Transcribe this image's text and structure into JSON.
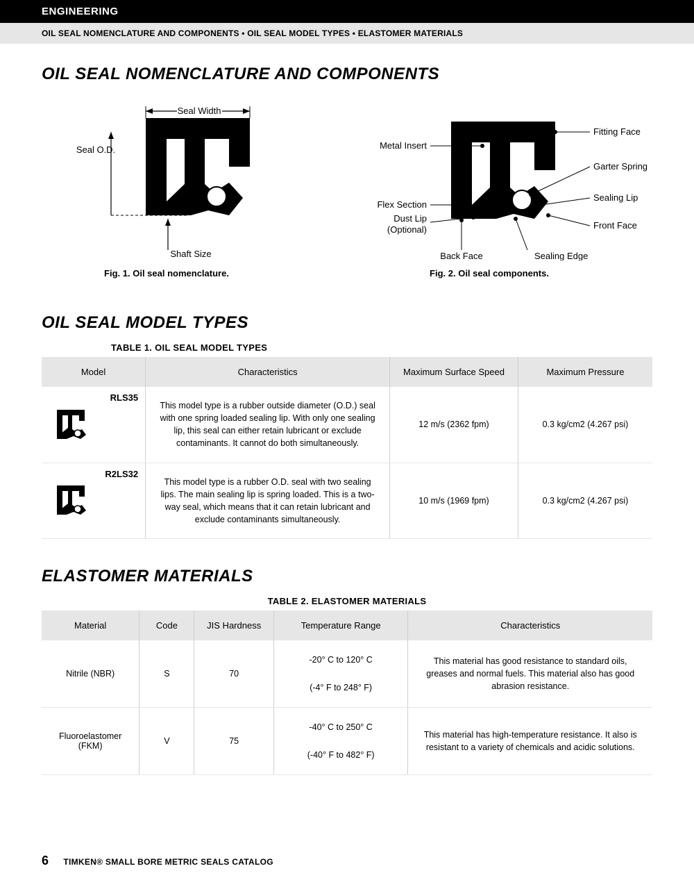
{
  "header": {
    "section": "ENGINEERING",
    "breadcrumb": "OIL SEAL NOMENCLATURE AND COMPONENTS • OIL SEAL MODEL TYPES • ELASTOMER MATERIALS"
  },
  "sec1": {
    "heading": "OIL SEAL NOMENCLATURE AND COMPONENTS",
    "fig1": {
      "caption": "Fig. 1. Oil seal nomenclature.",
      "labels": {
        "width": "Seal Width",
        "od": "Seal O.D.",
        "shaft": "Shaft Size"
      }
    },
    "fig2": {
      "caption": "Fig. 2. Oil seal components.",
      "labels": {
        "metal": "Metal Insert",
        "flex": "Flex Section",
        "dust1": "Dust Lip",
        "dust2": "(Optional)",
        "back": "Back Face",
        "fitting": "Fitting Face",
        "garter": "Garter Spring",
        "sealing_lip": "Sealing Lip",
        "front": "Front Face",
        "sealing_edge": "Sealing Edge"
      }
    }
  },
  "sec2": {
    "heading": "OIL SEAL MODEL TYPES",
    "table_title": "TABLE 1. OIL SEAL MODEL TYPES",
    "columns": [
      "Model",
      "Characteristics",
      "Maximum Surface Speed",
      "Maximum Pressure"
    ],
    "col_widths": [
      "17%",
      "40%",
      "21%",
      "22%"
    ],
    "rows": [
      {
        "model": "RLS35",
        "char": "This model type is a rubber outside diameter (O.D.) seal with one spring loaded sealing lip. With only one sealing lip, this seal can either retain lubricant or exclude contaminants. It cannot do both simultaneously.",
        "speed": "12 m/s (2362 fpm)",
        "pressure": "0.3 kg/cm2 (4.267 psi)"
      },
      {
        "model": "R2LS32",
        "char": "This model type is a rubber O.D. seal with two sealing lips. The main sealing lip is spring loaded. This is a two-way seal, which means that it can retain lubricant and exclude contaminants simultaneously.",
        "speed": "10 m/s (1969 fpm)",
        "pressure": "0.3 kg/cm2 (4.267 psi)"
      }
    ]
  },
  "sec3": {
    "heading": "ELASTOMER MATERIALS",
    "table_title": "TABLE 2. ELASTOMER MATERIALS",
    "columns": [
      "Material",
      "Code",
      "JIS Hardness",
      "Temperature Range",
      "Characteristics"
    ],
    "col_widths": [
      "16%",
      "9%",
      "13%",
      "22%",
      "40%"
    ],
    "rows": [
      {
        "material": "Nitrile (NBR)",
        "code": "S",
        "hardness": "70",
        "temp1": "-20° C to 120° C",
        "temp2": "(-4° F to 248° F)",
        "char": "This material has good resistance to standard oils, greases and normal fuels. This material also has good abrasion resistance."
      },
      {
        "material": "Fluoroelastomer (FKM)",
        "code": "V",
        "hardness": "75",
        "temp1": "-40° C to 250° C",
        "temp2": "(-40° F to 482° F)",
        "char": "This material has high-temperature resistance. It also is resistant to a variety of chemicals and acidic solutions."
      }
    ]
  },
  "footer": {
    "page": "6",
    "catalog": "TIMKEN® SMALL BORE METRIC SEALS CATALOG"
  },
  "colors": {
    "black": "#000000",
    "gray_bg": "#e6e6e6",
    "border": "#cfcfcf",
    "row_border": "#e6e6e6"
  }
}
